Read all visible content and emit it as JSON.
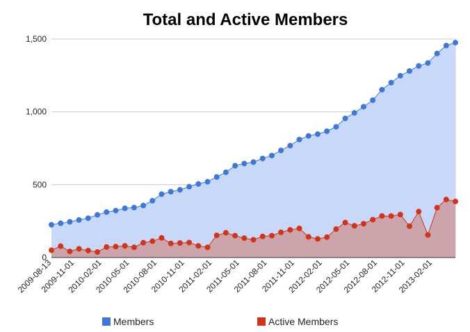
{
  "chart_data": {
    "type": "area",
    "title": "Total and Active Members",
    "xlabel": "",
    "ylabel": "",
    "ylim": [
      0,
      1500
    ],
    "yticks": [
      "0",
      "500",
      "1,000",
      "1,500"
    ],
    "ytick_values": [
      0,
      500,
      1000,
      1500
    ],
    "x_tick_labels": [
      "2009-08-13",
      "2009-11-01",
      "2010-02-01",
      "2010-05-01",
      "2010-08-01",
      "2010-11-01",
      "2011-02-01",
      "2011-05-01",
      "2011-08-01",
      "2011-11-01",
      "2012-02-01",
      "2012-05-01",
      "2012-08-01",
      "2012-11-01",
      "2013-02-01"
    ],
    "x_tick_indices": [
      0,
      2.5,
      5.5,
      8.5,
      11.5,
      14.5,
      17.5,
      20.5,
      23.5,
      26.5,
      29.5,
      32.5,
      35.5,
      38.5,
      41.5
    ],
    "grid": true,
    "legend_position": "bottom",
    "series": [
      {
        "name": "Members",
        "color": "#3d78d8",
        "fill": "#c7d8f8",
        "values": [
          225,
          235,
          245,
          258,
          270,
          293,
          312,
          322,
          338,
          343,
          357,
          390,
          435,
          452,
          465,
          486,
          505,
          520,
          553,
          585,
          630,
          645,
          655,
          680,
          700,
          735,
          768,
          810,
          835,
          847,
          867,
          897,
          955,
          993,
          1035,
          1080,
          1152,
          1200,
          1248,
          1280,
          1315,
          1335,
          1400,
          1455,
          1475
        ]
      },
      {
        "name": "Active Members",
        "color": "#d33417",
        "fill": "#cf7a6e",
        "values": [
          50,
          78,
          42,
          60,
          48,
          38,
          72,
          75,
          80,
          70,
          102,
          112,
          135,
          97,
          100,
          103,
          80,
          70,
          152,
          170,
          150,
          133,
          122,
          145,
          150,
          173,
          190,
          200,
          142,
          128,
          140,
          195,
          240,
          218,
          232,
          260,
          285,
          285,
          295,
          215,
          315,
          155,
          342,
          398,
          385
        ]
      }
    ]
  }
}
